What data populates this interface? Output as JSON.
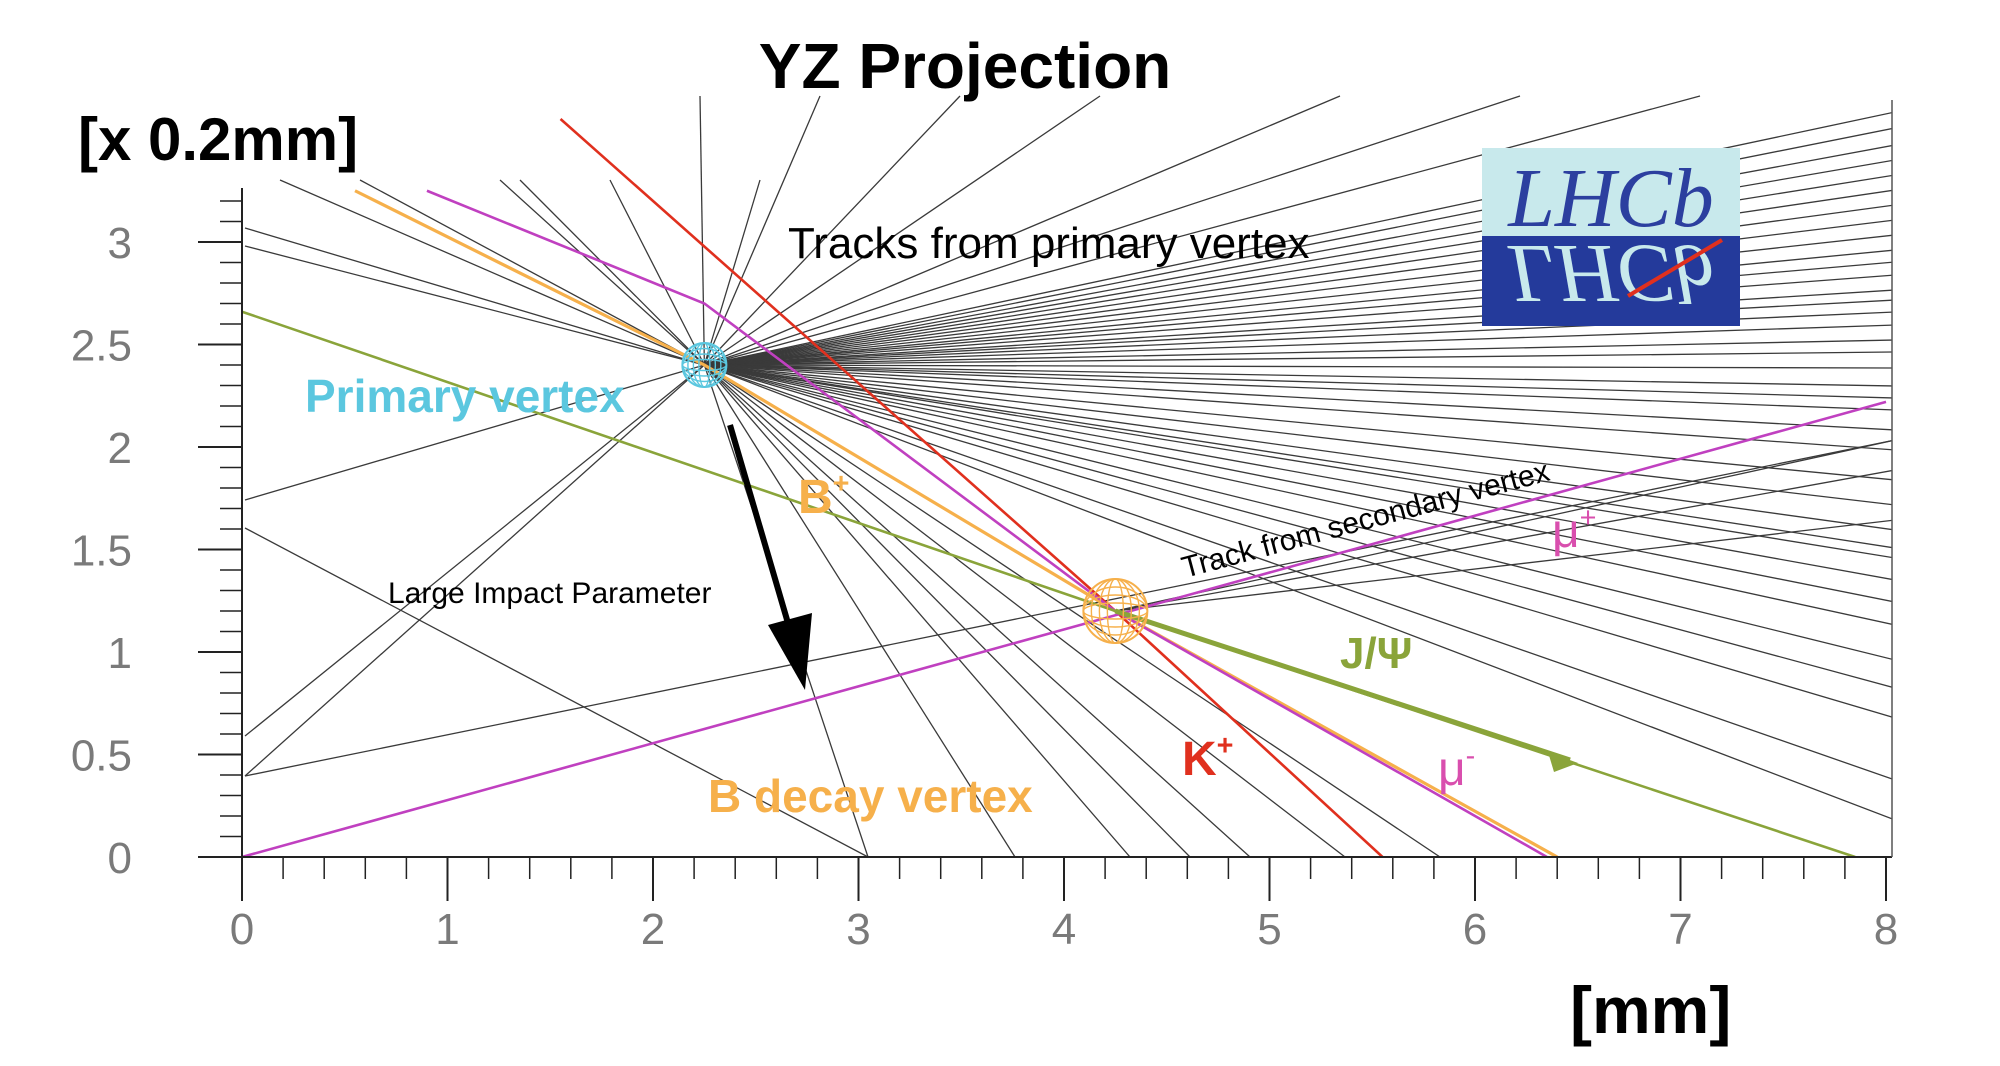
{
  "chart_data": {
    "type": "line",
    "title": "YZ Projection",
    "xlabel": "[mm]",
    "ylabel": "[x 0.2mm]",
    "xlim": [
      0,
      8
    ],
    "ylim": [
      0,
      3.25
    ],
    "x_ticks": [
      "0",
      "1",
      "2",
      "3",
      "4",
      "5",
      "6",
      "7",
      "8"
    ],
    "y_ticks": [
      "0",
      "0.5",
      "1",
      "1.5",
      "2",
      "2.5",
      "3"
    ],
    "grid": false,
    "vertices": {
      "primary": {
        "label": "Primary vertex",
        "x": 2.25,
        "y": 2.4,
        "color": "#5bc7df"
      },
      "secondary": {
        "label": "B decay vertex",
        "x": 4.25,
        "y": 1.2,
        "color": "#f6b04b"
      }
    },
    "series": [
      {
        "name": "B+",
        "color": "#f6b04b",
        "points": [
          [
            0.55,
            3.25
          ],
          [
            2.25,
            2.4
          ],
          [
            4.25,
            1.2
          ],
          [
            6.4,
            0
          ]
        ]
      },
      {
        "name": "K+",
        "color": "#e0301e",
        "points": [
          [
            1.55,
            3.6
          ],
          [
            4.25,
            1.2
          ],
          [
            5.55,
            0
          ]
        ]
      },
      {
        "name": "μ-",
        "color": "#c040c0",
        "points": [
          [
            0.9,
            3.25
          ],
          [
            2.25,
            2.7
          ],
          [
            4.25,
            1.2
          ],
          [
            6.35,
            0
          ]
        ]
      },
      {
        "name": "μ+",
        "color": "#c040c0",
        "points": [
          [
            0,
            0
          ],
          [
            8.0,
            2.22
          ]
        ]
      },
      {
        "name": "J/Ψ",
        "color": "#8aa43a",
        "points": [
          [
            0,
            2.66
          ],
          [
            4.25,
            1.2
          ],
          [
            7.85,
            0
          ]
        ]
      }
    ],
    "annotations": {
      "tracks_primary": "Tracks from primary vertex",
      "track_secondary": "Track from secondary vertex",
      "impact": "Large Impact Parameter",
      "b_plus": "B",
      "b_plus_sup": "+",
      "k_plus": "K",
      "k_plus_sup": "+",
      "jpsi": "J/Ψ",
      "mu_plus": "μ",
      "mu_plus_sup": "+",
      "mu_minus": "μ",
      "mu_minus_sup": "-"
    },
    "logo_text": "LHCb"
  }
}
